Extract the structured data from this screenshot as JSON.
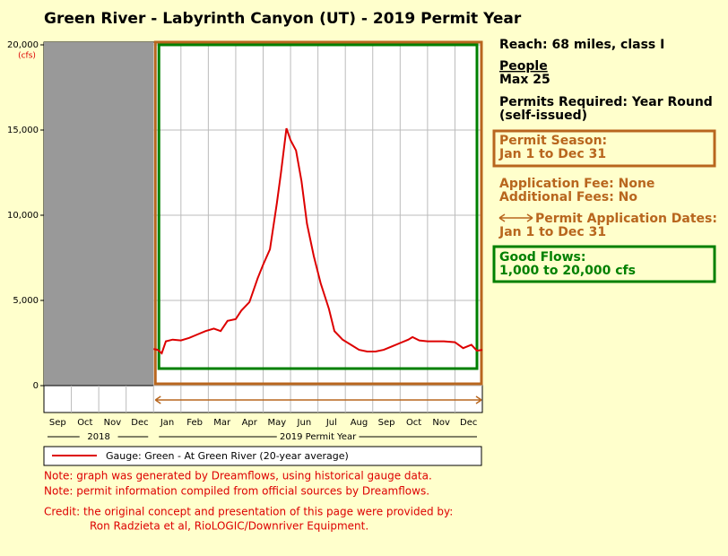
{
  "chart_data": {
    "type": "line",
    "title": "Green River - Labyrinth Canyon (UT) - 2019 Permit Year",
    "y_unit": "(cfs)",
    "categories": [
      "Sep",
      "Oct",
      "Nov",
      "Dec",
      "Jan",
      "Feb",
      "Mar",
      "Apr",
      "May",
      "Jun",
      "Jul",
      "Aug",
      "Sep",
      "Oct",
      "Nov",
      "Dec"
    ],
    "year_groups": [
      "2018",
      "2019 Permit Year"
    ],
    "xlim": [
      0,
      16
    ],
    "ylim": [
      0,
      20000
    ],
    "yticks": [
      {
        "value": 0,
        "label": "0"
      },
      {
        "value": 5000,
        "label": "5,000"
      },
      {
        "value": 10000,
        "label": "10,000"
      },
      {
        "value": 15000,
        "label": "15,000"
      },
      {
        "value": 20000,
        "label": "20,000"
      }
    ],
    "grid": true,
    "good_flow_range": [
      1000,
      20000
    ],
    "series": [
      {
        "name": "Gauge: Green - At Green River (20-year average)",
        "color": "#dd0000",
        "x": [
          4.0,
          4.15,
          4.3,
          4.45,
          4.7,
          5.0,
          5.3,
          5.6,
          5.9,
          6.2,
          6.45,
          6.7,
          7.0,
          7.2,
          7.5,
          7.8,
          8.0,
          8.25,
          8.5,
          8.65,
          8.85,
          9.0,
          9.2,
          9.4,
          9.6,
          9.85,
          10.1,
          10.4,
          10.6,
          10.9,
          11.2,
          11.5,
          11.8,
          12.1,
          12.4,
          12.7,
          13.0,
          13.3,
          13.45,
          13.7,
          14.0,
          14.3,
          14.6,
          15.0,
          15.3,
          15.6,
          15.8,
          16.0
        ],
        "values": [
          2150,
          2100,
          1900,
          2600,
          2700,
          2650,
          2800,
          3000,
          3200,
          3350,
          3200,
          3800,
          3900,
          4400,
          4900,
          6300,
          7100,
          8000,
          10700,
          12500,
          15100,
          14400,
          13800,
          12000,
          9500,
          7600,
          6000,
          4500,
          3200,
          2700,
          2400,
          2100,
          2000,
          2000,
          2100,
          2300,
          2500,
          2700,
          2850,
          2650,
          2600,
          2600,
          2600,
          2550,
          2200,
          2400,
          2050,
          2100
        ]
      }
    ]
  },
  "panel": {
    "reach": "Reach: 68 miles, class I",
    "people_heading": "People",
    "people": "Max 25",
    "permits_1": "Permits Required: Year Round",
    "permits_2": "(self-issued)",
    "season_1": "Permit Season:",
    "season_2": "Jan 1 to Dec 31",
    "fee_1": "Application Fee: None",
    "fee_2": "Additional Fees: No",
    "dates_1": "Permit Application Dates:",
    "dates_2": "Jan 1 to Dec 31",
    "flows_1": "Good Flows:",
    "flows_2": "1,000 to 20,000 cfs"
  },
  "notes": [
    "Note: graph was generated by Dreamflows, using historical gauge data.",
    "Note: permit information compiled from official sources by Dreamflows.",
    "Credit: the original concept and presentation of this page were provided by:",
    "Ron Radzieta et al, RioLOGIC/Downriver Equipment."
  ]
}
